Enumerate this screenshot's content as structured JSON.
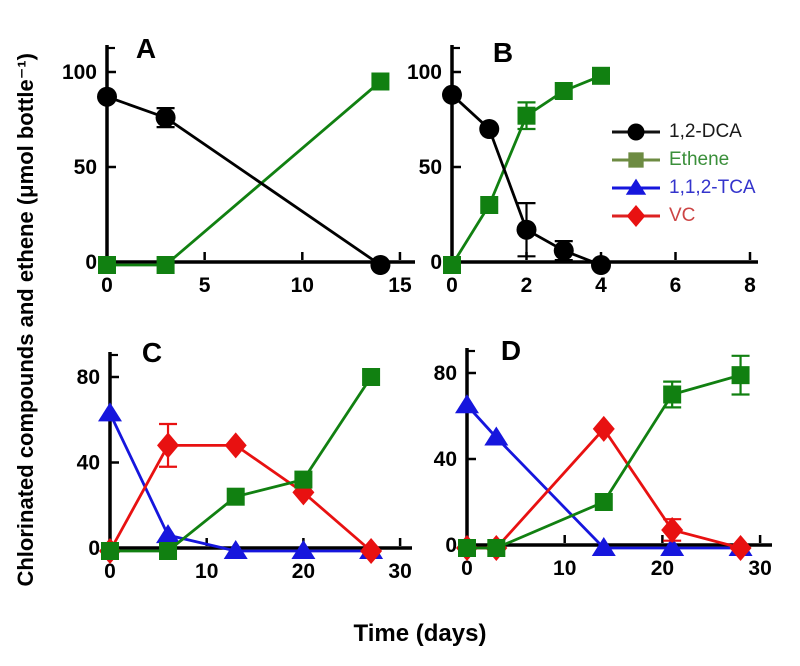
{
  "figure": {
    "y_axis_label": "Chlorinated compounds and ethene (μmol bottle⁻¹)",
    "x_axis_label": "Time (days)",
    "background_color": "#ffffff",
    "axis_color": "#000000"
  },
  "legend": {
    "position": "right side of panel B",
    "items": [
      {
        "label": "1,2-DCA",
        "marker": "circle",
        "marker_color": "#000000",
        "line_color": "#111111",
        "text_color": "#1a1a1a"
      },
      {
        "label": "Ethene",
        "marker": "square",
        "marker_color": "#6d8b42",
        "line_color": "#6d8b42",
        "text_color": "#3a8f3a"
      },
      {
        "label": "1,1,2-TCA",
        "marker": "triangle",
        "marker_color": "#1616dd",
        "line_color": "#1616dd",
        "text_color": "#3434cc"
      },
      {
        "label": "VC",
        "marker": "diamond",
        "marker_color": "#e81111",
        "line_color": "#dd2222",
        "text_color": "#cc4444"
      }
    ]
  },
  "chart_data": [
    {
      "id": "A",
      "label": "A",
      "type": "line",
      "grid": false,
      "x_unit": "days",
      "y_unit": "µmol bottle⁻¹",
      "xlim": [
        0,
        15.8
      ],
      "ylim": [
        0,
        114
      ],
      "x_ticks": [
        0,
        5,
        10,
        15
      ],
      "y_ticks": [
        0,
        50,
        100
      ],
      "series": [
        {
          "name": "Ethene",
          "marker": "square",
          "color": "#118011",
          "points": [
            {
              "x": 0,
              "y": 0
            },
            {
              "x": 3,
              "y": 0
            },
            {
              "x": 14,
              "y": 95
            }
          ]
        },
        {
          "name": "1,2-DCA",
          "marker": "circle",
          "color": "#000000",
          "points": [
            {
              "x": 0,
              "y": 87
            },
            {
              "x": 3,
              "y": 76,
              "err": 5
            },
            {
              "x": 14,
              "y": 0
            }
          ]
        }
      ]
    },
    {
      "id": "B",
      "label": "B",
      "type": "line",
      "grid": false,
      "x_unit": "days",
      "y_unit": "µmol bottle⁻¹",
      "xlim": [
        0,
        8.2
      ],
      "ylim": [
        0,
        114
      ],
      "x_ticks": [
        0,
        2,
        4,
        6,
        8
      ],
      "y_ticks": [
        0,
        50,
        100
      ],
      "series": [
        {
          "name": "Ethene",
          "marker": "square",
          "color": "#118011",
          "points": [
            {
              "x": 0,
              "y": 0
            },
            {
              "x": 1,
              "y": 30
            },
            {
              "x": 2,
              "y": 77,
              "err": 7
            },
            {
              "x": 3,
              "y": 90
            },
            {
              "x": 4,
              "y": 98
            }
          ]
        },
        {
          "name": "1,2-DCA",
          "marker": "circle",
          "color": "#000000",
          "points": [
            {
              "x": 0,
              "y": 88
            },
            {
              "x": 1,
              "y": 70
            },
            {
              "x": 2,
              "y": 17,
              "err": 14
            },
            {
              "x": 3,
              "y": 6,
              "err": 5
            },
            {
              "x": 4,
              "y": 0
            }
          ]
        }
      ]
    },
    {
      "id": "C",
      "label": "C",
      "type": "line",
      "grid": false,
      "x_unit": "days",
      "y_unit": "µmol bottle⁻¹",
      "xlim": [
        0,
        31.2
      ],
      "ylim": [
        0,
        92
      ],
      "x_ticks": [
        0,
        10,
        20,
        30
      ],
      "y_ticks": [
        0,
        40,
        80
      ],
      "series": [
        {
          "name": "1,1,2-TCA",
          "marker": "triangle",
          "color": "#1616dd",
          "points": [
            {
              "x": 0,
              "y": 63
            },
            {
              "x": 6,
              "y": 6
            },
            {
              "x": 13,
              "y": 0
            },
            {
              "x": 20,
              "y": 0
            },
            {
              "x": 27,
              "y": 0
            }
          ]
        },
        {
          "name": "VC",
          "marker": "diamond",
          "color": "#e81111",
          "points": [
            {
              "x": 0,
              "y": 0
            },
            {
              "x": 6,
              "y": 48,
              "err": 10
            },
            {
              "x": 13,
              "y": 48
            },
            {
              "x": 20,
              "y": 26
            },
            {
              "x": 27,
              "y": 0
            }
          ]
        },
        {
          "name": "Ethene",
          "marker": "square",
          "color": "#118011",
          "points": [
            {
              "x": 0,
              "y": 0
            },
            {
              "x": 6,
              "y": 0
            },
            {
              "x": 13,
              "y": 24
            },
            {
              "x": 20,
              "y": 32
            },
            {
              "x": 27,
              "y": 80
            }
          ]
        }
      ]
    },
    {
      "id": "D",
      "label": "D",
      "type": "line",
      "grid": false,
      "x_unit": "days",
      "y_unit": "µmol bottle⁻¹",
      "xlim": [
        0,
        31.2
      ],
      "ylim": [
        0,
        92
      ],
      "x_ticks": [
        0,
        10,
        20,
        30
      ],
      "y_ticks": [
        0,
        40,
        80
      ],
      "series": [
        {
          "name": "1,1,2-TCA",
          "marker": "triangle",
          "color": "#1616dd",
          "points": [
            {
              "x": 0,
              "y": 65
            },
            {
              "x": 3,
              "y": 50
            },
            {
              "x": 14,
              "y": 0
            },
            {
              "x": 21,
              "y": 0
            },
            {
              "x": 28,
              "y": 0
            }
          ]
        },
        {
          "name": "VC",
          "marker": "diamond",
          "color": "#e81111",
          "points": [
            {
              "x": 0,
              "y": 0
            },
            {
              "x": 3,
              "y": 0
            },
            {
              "x": 14,
              "y": 54
            },
            {
              "x": 21,
              "y": 7,
              "err": 5
            },
            {
              "x": 28,
              "y": 0
            }
          ]
        },
        {
          "name": "Ethene",
          "marker": "square",
          "color": "#118011",
          "points": [
            {
              "x": 0,
              "y": 0
            },
            {
              "x": 3,
              "y": 0
            },
            {
              "x": 14,
              "y": 20
            },
            {
              "x": 21,
              "y": 70,
              "err": 6
            },
            {
              "x": 28,
              "y": 79,
              "err": 9
            }
          ]
        }
      ]
    }
  ]
}
